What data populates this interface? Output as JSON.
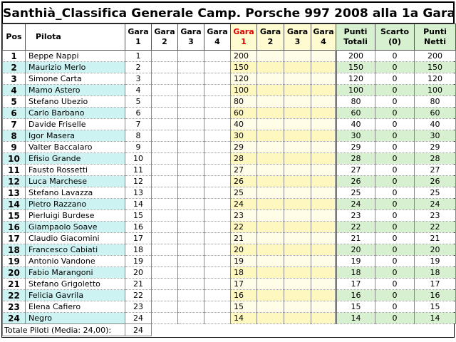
{
  "title": "Santhià_Classifica Generale Camp. Porsche 997 2008 alla 1a Gara",
  "headers": {
    "pos": "Pos",
    "pilota": "Pilota",
    "gare_a": [
      [
        "Gara",
        "1"
      ],
      [
        "Gara",
        "2"
      ],
      [
        "Gara",
        "3"
      ],
      [
        "Gara",
        "4"
      ]
    ],
    "gare_b": [
      [
        "Gara",
        "1"
      ],
      [
        "Gara",
        "2"
      ],
      [
        "Gara",
        "3"
      ],
      [
        "Gara",
        "4"
      ]
    ],
    "punti_totali": [
      "Punti",
      "Totali"
    ],
    "scarto": [
      "Scarto",
      "(0)"
    ],
    "punti_netti": [
      "Punti",
      "Netti"
    ]
  },
  "rows": [
    {
      "pos": "1",
      "pilota": "Beppe Nappi",
      "g1": "1",
      "p1": "200",
      "tot": "200",
      "scarto": "0",
      "netti": "200"
    },
    {
      "pos": "2",
      "pilota": "Maurizio Merlo",
      "g1": "2",
      "p1": "150",
      "tot": "150",
      "scarto": "0",
      "netti": "150"
    },
    {
      "pos": "3",
      "pilota": "Simone Carta",
      "g1": "3",
      "p1": "120",
      "tot": "120",
      "scarto": "0",
      "netti": "120"
    },
    {
      "pos": "4",
      "pilota": "Mamo Astero",
      "g1": "4",
      "p1": "100",
      "tot": "100",
      "scarto": "0",
      "netti": "100"
    },
    {
      "pos": "5",
      "pilota": "Stefano Ubezio",
      "g1": "5",
      "p1": "80",
      "tot": "80",
      "scarto": "0",
      "netti": "80"
    },
    {
      "pos": "6",
      "pilota": "Carlo Barbano",
      "g1": "6",
      "p1": "60",
      "tot": "60",
      "scarto": "0",
      "netti": "60"
    },
    {
      "pos": "7",
      "pilota": "Davide Friselle",
      "g1": "7",
      "p1": "40",
      "tot": "40",
      "scarto": "0",
      "netti": "40"
    },
    {
      "pos": "8",
      "pilota": "Igor Masera",
      "g1": "8",
      "p1": "30",
      "tot": "30",
      "scarto": "0",
      "netti": "30"
    },
    {
      "pos": "9",
      "pilota": "Valter Baccalaro",
      "g1": "9",
      "p1": "29",
      "tot": "29",
      "scarto": "0",
      "netti": "29"
    },
    {
      "pos": "10",
      "pilota": "Efisio Grande",
      "g1": "10",
      "p1": "28",
      "tot": "28",
      "scarto": "0",
      "netti": "28"
    },
    {
      "pos": "11",
      "pilota": "Fausto Rossetti",
      "g1": "11",
      "p1": "27",
      "tot": "27",
      "scarto": "0",
      "netti": "27"
    },
    {
      "pos": "12",
      "pilota": "Luca Marchese",
      "g1": "12",
      "p1": "26",
      "tot": "26",
      "scarto": "0",
      "netti": "26"
    },
    {
      "pos": "13",
      "pilota": "Stefano Lavazza",
      "g1": "13",
      "p1": "25",
      "tot": "25",
      "scarto": "0",
      "netti": "25"
    },
    {
      "pos": "14",
      "pilota": "Pietro Razzano",
      "g1": "14",
      "p1": "24",
      "tot": "24",
      "scarto": "0",
      "netti": "24"
    },
    {
      "pos": "15",
      "pilota": "Pierluigi Burdese",
      "g1": "15",
      "p1": "23",
      "tot": "23",
      "scarto": "0",
      "netti": "23"
    },
    {
      "pos": "16",
      "pilota": "Giampaolo Soave",
      "g1": "16",
      "p1": "22",
      "tot": "22",
      "scarto": "0",
      "netti": "22"
    },
    {
      "pos": "17",
      "pilota": "Claudio Giacomini",
      "g1": "17",
      "p1": "21",
      "tot": "21",
      "scarto": "0",
      "netti": "21"
    },
    {
      "pos": "18",
      "pilota": "Francesco Cabiati",
      "g1": "18",
      "p1": "20",
      "tot": "20",
      "scarto": "0",
      "netti": "20"
    },
    {
      "pos": "19",
      "pilota": "Antonio Vandone",
      "g1": "19",
      "p1": "19",
      "tot": "19",
      "scarto": "0",
      "netti": "19"
    },
    {
      "pos": "20",
      "pilota": "Fabio Marangoni",
      "g1": "20",
      "p1": "18",
      "tot": "18",
      "scarto": "0",
      "netti": "18"
    },
    {
      "pos": "21",
      "pilota": "Stefano Grigoletto",
      "g1": "21",
      "p1": "17",
      "tot": "17",
      "scarto": "0",
      "netti": "17"
    },
    {
      "pos": "22",
      "pilota": "Felicia Gavrila",
      "g1": "22",
      "p1": "16",
      "tot": "16",
      "scarto": "0",
      "netti": "16"
    },
    {
      "pos": "23",
      "pilota": "Elena Cafiero",
      "g1": "23",
      "p1": "15",
      "tot": "15",
      "scarto": "0",
      "netti": "15"
    },
    {
      "pos": "24",
      "pilota": "Negro",
      "g1": "24",
      "p1": "14",
      "tot": "14",
      "scarto": "0",
      "netti": "14"
    }
  ],
  "footer": {
    "label": "Totale Piloti (Media:  24,00):",
    "value": "24"
  },
  "colors": {
    "cyan_alt": "#cdf2f2",
    "yellow": "#fffbd0",
    "green": "#d6f0d0",
    "red_header": "#e00000"
  }
}
